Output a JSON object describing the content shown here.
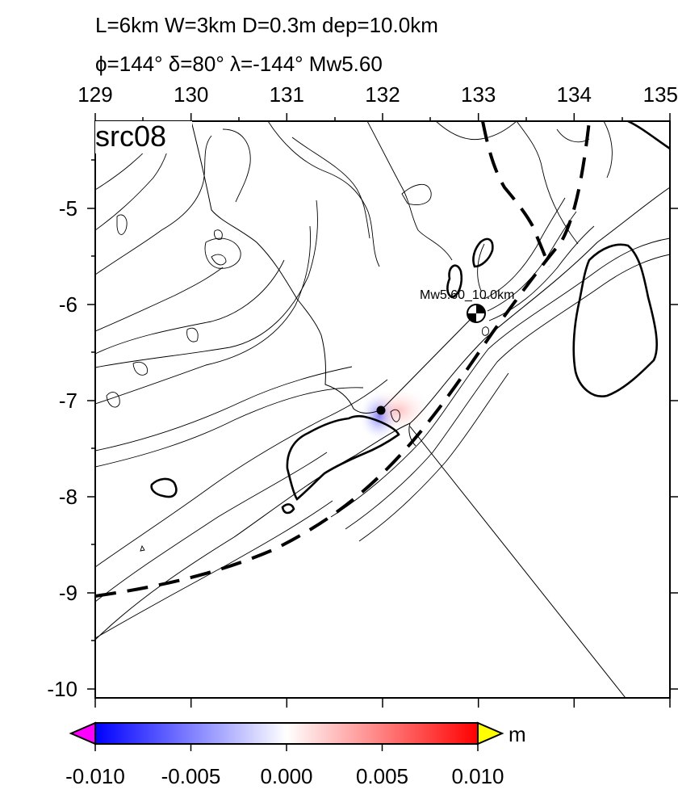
{
  "header": {
    "line1": "L=6km W=3km D=0.3m dep=10.0km",
    "line2": "ϕ=144° δ=80° λ=-144° Mw5.60"
  },
  "map": {
    "panel_label": "src08",
    "event_label": "Mw5.60_10.0km",
    "x_ticks": [
      "129",
      "130",
      "131",
      "132",
      "133",
      "134",
      "135"
    ],
    "y_ticks": [
      "-5",
      "-6",
      "-7",
      "-8",
      "-9",
      "-10"
    ],
    "lon_range": [
      129,
      135
    ],
    "lat_range": [
      -10.1,
      -4.1
    ],
    "epicenter": {
      "lon": 133.0,
      "lat": -6.1
    },
    "fault": {
      "lon": 132.0,
      "lat": -7.1
    }
  },
  "colorbar": {
    "unit": "m",
    "min": -0.01,
    "max": 0.01,
    "tick_labels": [
      "-0.010",
      "-0.005",
      "0.000",
      "0.005",
      "0.010"
    ],
    "colors": {
      "low_end": "#ff00ff",
      "min": "#0000ff",
      "mid": "#ffffff",
      "max": "#ff0000",
      "high_end": "#ffff00"
    }
  }
}
